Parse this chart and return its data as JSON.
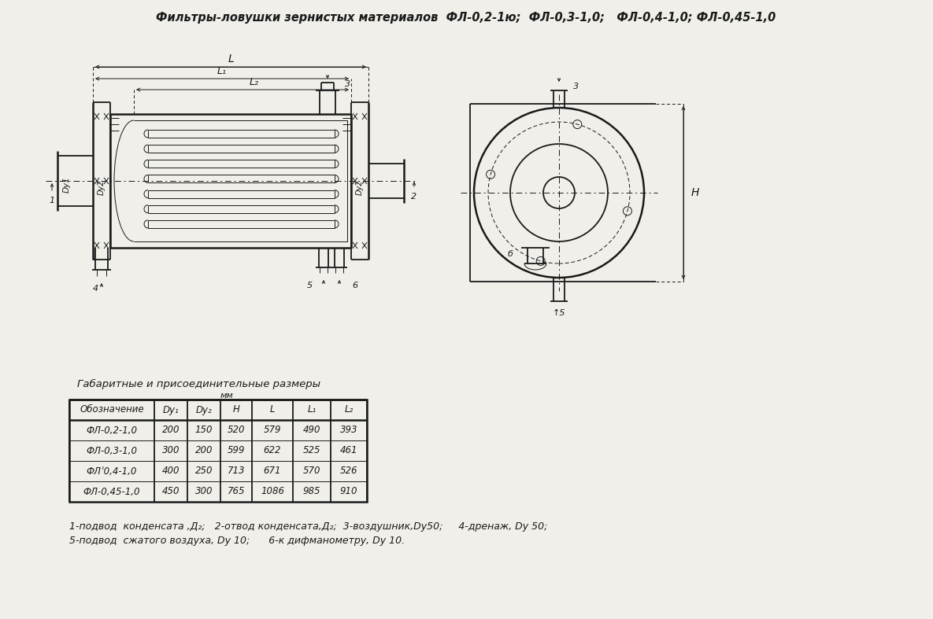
{
  "title": "Фильтры-ловушки зернистых материалов  ФЛ-0,2-1ю;  ФЛ-0,3-1,0;   ФЛ-0,4-1,0; ФЛ-0,45-1,0",
  "bg_color": "#f0efea",
  "table_title": "Габаритные и присоединительные размеры",
  "table_subtitle": "мм",
  "table_headers": [
    "Обозначение",
    "Dy₁",
    "Dy₂",
    "H",
    "L",
    "L₁",
    "L₂"
  ],
  "table_rows": [
    [
      "ФЛ-0,2-1,0",
      "200",
      "150",
      "520",
      "579",
      "490",
      "393"
    ],
    [
      "ФЛ-0,3-1,0",
      "300",
      "200",
      "599",
      "622",
      "525",
      "461"
    ],
    [
      "ФЛʾ0,4-1,0",
      "400",
      "250",
      "713",
      "671",
      "570",
      "526"
    ],
    [
      "ФЛ-0,45-1,0",
      "450",
      "300",
      "765",
      "1086",
      "985",
      "910"
    ]
  ],
  "footnote_line1": "1-подвод  конденсата ,Д₂;   2-отвод конденсата,Д₂;  3-воздушник,Dy50;     4-дренаж, Dy 50;",
  "footnote_line2": "5-подвод  сжатого воздуха, Dy 10;      6-к дифманометру, Dy 10."
}
